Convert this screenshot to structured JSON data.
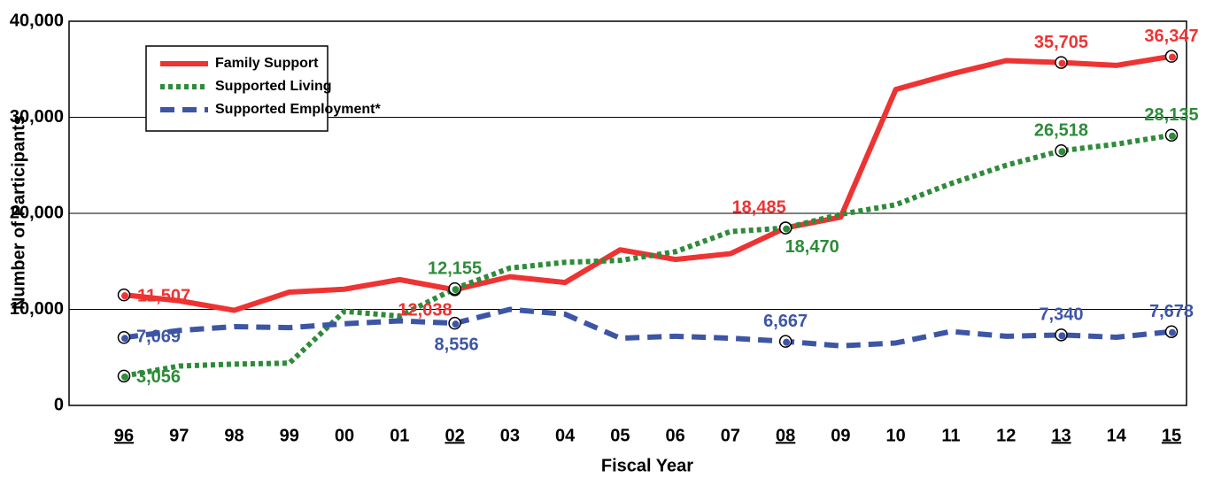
{
  "chart_data": {
    "type": "line",
    "x_label": "Fiscal Year",
    "y_label": "Number of Participants",
    "categories": [
      "96",
      "97",
      "98",
      "99",
      "00",
      "01",
      "02",
      "03",
      "04",
      "05",
      "06",
      "07",
      "08",
      "09",
      "10",
      "11",
      "12",
      "13",
      "14",
      "15"
    ],
    "underlined": [
      0,
      6,
      12,
      17,
      19
    ],
    "series": [
      {
        "name": "Family Support",
        "color": "#ee3333",
        "dash": "solid",
        "values": [
          11507,
          10900,
          9900,
          11800,
          12100,
          13100,
          12038,
          13400,
          12800,
          16200,
          15200,
          15800,
          18485,
          19600,
          32900,
          34500,
          35900,
          35705,
          35400,
          36347
        ],
        "value_labels": [
          "11,507",
          null,
          null,
          null,
          null,
          null,
          "12,038",
          null,
          null,
          null,
          null,
          null,
          "18,485",
          null,
          null,
          null,
          null,
          "35,705",
          null,
          "36,347"
        ]
      },
      {
        "name": "Supported Living",
        "color": "#2e8b3a",
        "dash": "dotted",
        "values": [
          3056,
          4100,
          4300,
          4400,
          9800,
          9300,
          12155,
          14300,
          14900,
          15100,
          16000,
          18100,
          18470,
          19900,
          20900,
          23100,
          25000,
          26518,
          27200,
          28135
        ],
        "value_labels": [
          "3,056",
          null,
          null,
          null,
          null,
          null,
          "12,155",
          null,
          null,
          null,
          null,
          null,
          "18,470",
          null,
          null,
          null,
          null,
          "26,518",
          null,
          "28,135"
        ]
      },
      {
        "name": "Supported Employment*",
        "color": "#3d55a5",
        "dash": "dashed",
        "values": [
          7069,
          7800,
          8200,
          8100,
          8500,
          8800,
          8556,
          10000,
          9500,
          7000,
          7200,
          7000,
          6667,
          6200,
          6500,
          7700,
          7200,
          7340,
          7100,
          7678
        ],
        "value_labels": [
          "7,069",
          null,
          null,
          null,
          null,
          null,
          "8,556",
          null,
          null,
          null,
          null,
          null,
          "6,667",
          null,
          null,
          null,
          null,
          "7,340",
          null,
          "7,678"
        ]
      }
    ],
    "ylim": [
      0,
      40000
    ],
    "yticks": [
      0,
      {
        "value": 10000,
        "label": "10,000"
      },
      {
        "value": 20000,
        "label": "20,000"
      },
      {
        "value": 30000,
        "label": "30,000"
      },
      {
        "value": 40000,
        "label": "40,000"
      }
    ],
    "grid": true,
    "legend": "top-left"
  }
}
